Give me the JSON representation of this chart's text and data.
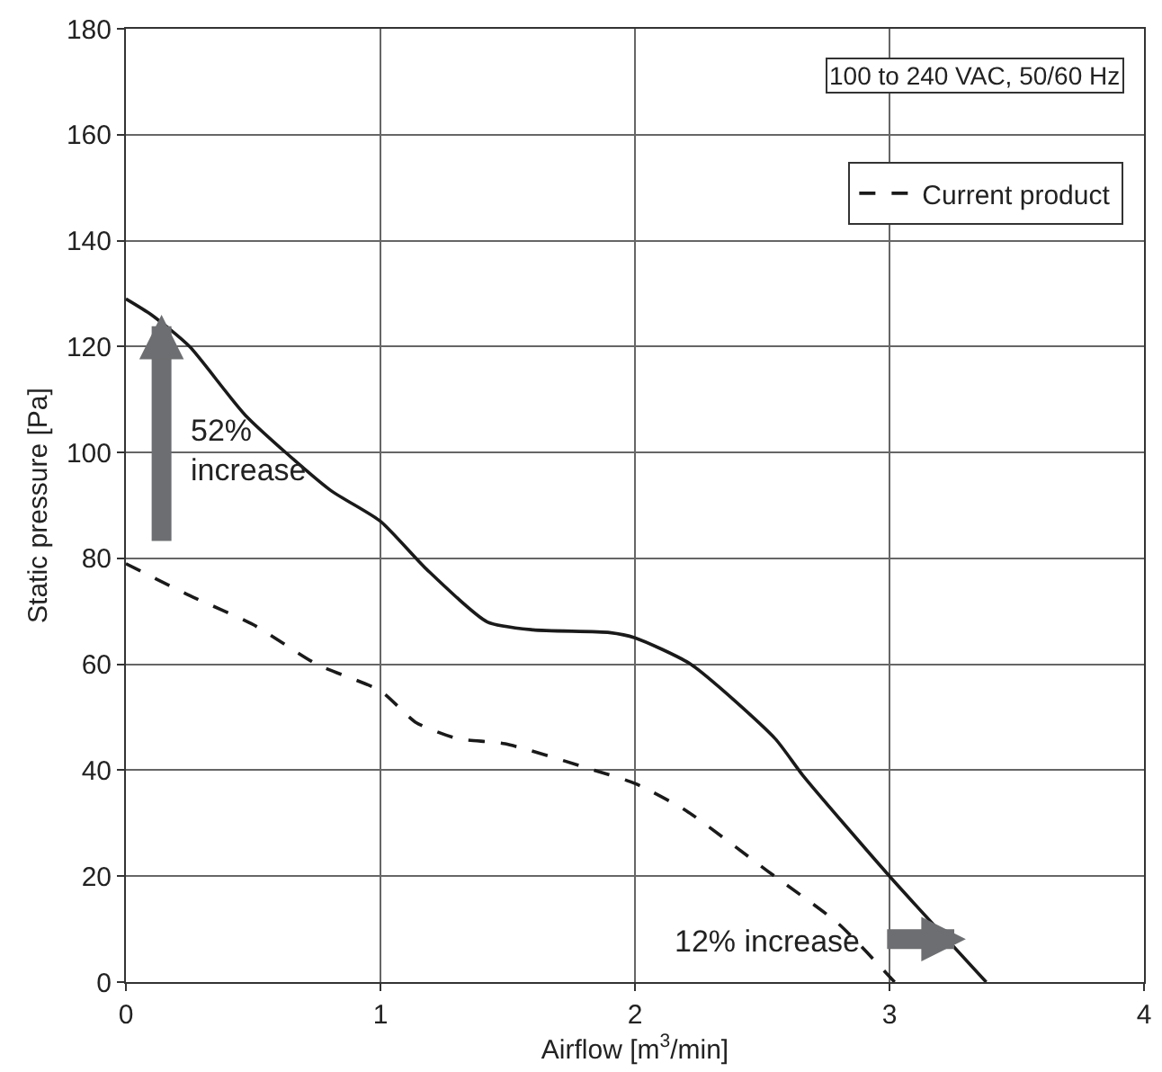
{
  "chart_data": {
    "type": "line",
    "xlabel": "Airflow [m$^{3}$/min]",
    "ylabel": "Static pressure [Pa]",
    "xlim": [
      0,
      4
    ],
    "xticks": [
      0,
      1,
      2,
      3,
      4
    ],
    "ylim": [
      0,
      180
    ],
    "yticks": [
      0,
      20,
      40,
      60,
      80,
      100,
      120,
      140,
      160,
      180
    ],
    "grid": true,
    "legend": "top right",
    "annotations": [
      "100 to 240 VAC, 50/60 Hz",
      "52%\nincrease",
      "12% increase"
    ],
    "series": [
      {
        "color": "#1a1a1a",
        "line_style": "solid",
        "x": [
          0,
          0.1,
          0.25,
          0.47,
          0.8,
          1.0,
          1.18,
          1.42,
          1.6,
          1.9,
          2.0,
          2.22,
          2.55,
          2.66,
          3.0,
          3.38
        ],
        "values": [
          129,
          126,
          120,
          107,
          93,
          87,
          78,
          68,
          66.5,
          66,
          65,
          60,
          46,
          39,
          20,
          0
        ]
      },
      {
        "name": "Current product",
        "color": "#1a1a1a",
        "line_style": "dashed",
        "x": [
          0,
          0.25,
          0.5,
          0.75,
          1.0,
          1.14,
          1.3,
          1.49,
          1.84,
          2.0,
          2.2,
          2.52,
          2.8,
          3.02
        ],
        "values": [
          79,
          73,
          67.5,
          60,
          55,
          49,
          46,
          45,
          40,
          37.5,
          32.4,
          21,
          11,
          0
        ]
      }
    ]
  }
}
